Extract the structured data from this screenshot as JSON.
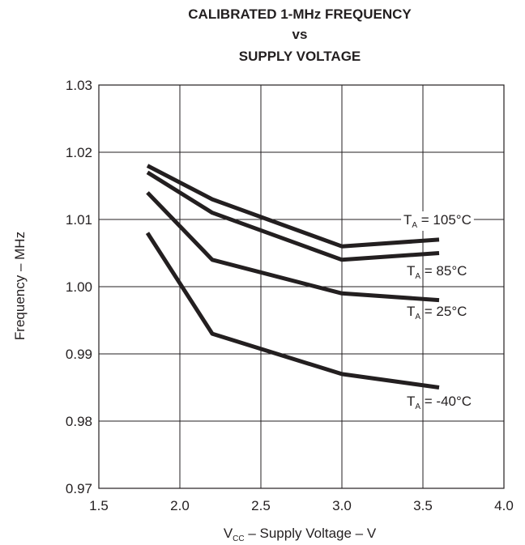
{
  "chart_data": {
    "type": "line",
    "title_lines": [
      "CALIBRATED 1-MHz FREQUENCY",
      "vs",
      "SUPPLY VOLTAGE"
    ],
    "xlabel": {
      "main": "V",
      "sub": "CC",
      "rest": " – Supply Voltage – V"
    },
    "ylabel": "Frequency – MHz",
    "xlim": [
      1.5,
      4.0
    ],
    "ylim": [
      0.97,
      1.03
    ],
    "x_ticks": [
      "1.5",
      "2.0",
      "2.5",
      "3.0",
      "3.5",
      "4.0"
    ],
    "y_ticks": [
      "0.97",
      "0.98",
      "0.99",
      "1.00",
      "1.01",
      "1.02",
      "1.03"
    ],
    "grid": true,
    "series": [
      {
        "name": {
          "main": "T",
          "sub": "A",
          "rest": " = 105°C"
        },
        "x": [
          1.8,
          2.2,
          3.0,
          3.6
        ],
        "y": [
          1.018,
          1.013,
          1.006,
          1.007
        ]
      },
      {
        "name": {
          "main": "T",
          "sub": "A",
          "rest": " = 85°C"
        },
        "x": [
          1.8,
          2.2,
          3.0,
          3.6
        ],
        "y": [
          1.017,
          1.011,
          1.004,
          1.005
        ]
      },
      {
        "name": {
          "main": "T",
          "sub": "A",
          "rest": " = 25°C"
        },
        "x": [
          1.8,
          2.2,
          3.0,
          3.6
        ],
        "y": [
          1.014,
          1.004,
          0.999,
          0.998
        ]
      },
      {
        "name": {
          "main": "T",
          "sub": "A",
          "rest": " = -40°C"
        },
        "x": [
          1.8,
          2.2,
          3.0,
          3.6
        ],
        "y": [
          1.008,
          0.993,
          0.987,
          0.985
        ]
      }
    ]
  }
}
